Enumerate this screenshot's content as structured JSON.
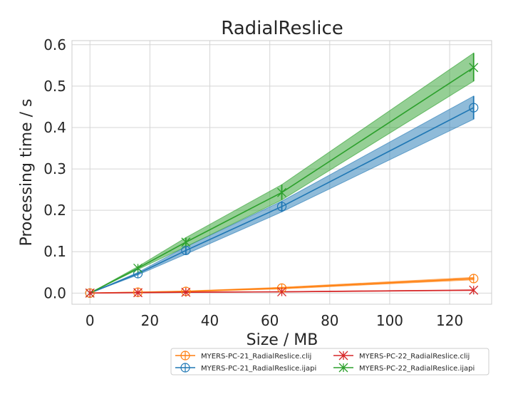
{
  "chart_data": {
    "type": "line",
    "title": "RadialReslice",
    "xlabel": "Size / MB",
    "ylabel": "Processing time / s",
    "xlim": [
      -6,
      134
    ],
    "ylim": [
      -0.027,
      0.61
    ],
    "xticks": [
      0,
      20,
      40,
      60,
      80,
      100,
      120
    ],
    "xtick_labels": [
      "0",
      "20",
      "40",
      "60",
      "80",
      "100",
      "120"
    ],
    "yticks": [
      0.0,
      0.1,
      0.2,
      0.3,
      0.4,
      0.5,
      0.6
    ],
    "ytick_labels": [
      "0.0",
      "0.1",
      "0.2",
      "0.3",
      "0.4",
      "0.5",
      "0.6"
    ],
    "grid": true,
    "legend_placement": "bottom-right, two columns",
    "x": [
      0,
      16,
      32,
      64,
      128
    ],
    "series": [
      {
        "name": "MYERS-PC-21_RadialReslice.clij",
        "color": "#ff7f0e",
        "marker": "circle",
        "values": [
          0.0,
          0.002,
          0.004,
          0.012,
          0.035
        ],
        "band": [
          [
            0.0,
            0.0
          ],
          [
            0.0015,
            0.0025
          ],
          [
            0.003,
            0.005
          ],
          [
            0.01,
            0.014
          ],
          [
            0.032,
            0.038
          ]
        ]
      },
      {
        "name": "MYERS-PC-21_RadialReslice.ijapi",
        "color": "#1f77b4",
        "marker": "circle",
        "values": [
          0.0,
          0.047,
          0.103,
          0.209,
          0.448
        ],
        "band": [
          [
            0.0,
            0.0
          ],
          [
            0.044,
            0.05
          ],
          [
            0.094,
            0.112
          ],
          [
            0.196,
            0.222
          ],
          [
            0.42,
            0.476
          ]
        ]
      },
      {
        "name": "MYERS-PC-22_RadialReslice.clij",
        "color": "#d62728",
        "marker": "x",
        "values": [
          0.0,
          0.001,
          0.002,
          0.003,
          0.007
        ],
        "band": [
          [
            0.0,
            0.0
          ],
          [
            0.0005,
            0.0015
          ],
          [
            0.0015,
            0.0025
          ],
          [
            0.0025,
            0.0035
          ],
          [
            0.006,
            0.008
          ]
        ]
      },
      {
        "name": "MYERS-PC-22_RadialReslice.ijapi",
        "color": "#2ca02c",
        "marker": "x",
        "values": [
          0.0,
          0.06,
          0.123,
          0.243,
          0.545
        ],
        "band": [
          [
            0.0,
            0.0
          ],
          [
            0.057,
            0.064
          ],
          [
            0.112,
            0.134
          ],
          [
            0.225,
            0.262
          ],
          [
            0.512,
            0.58
          ]
        ]
      }
    ],
    "legend_order": [
      0,
      1,
      2,
      3
    ]
  }
}
